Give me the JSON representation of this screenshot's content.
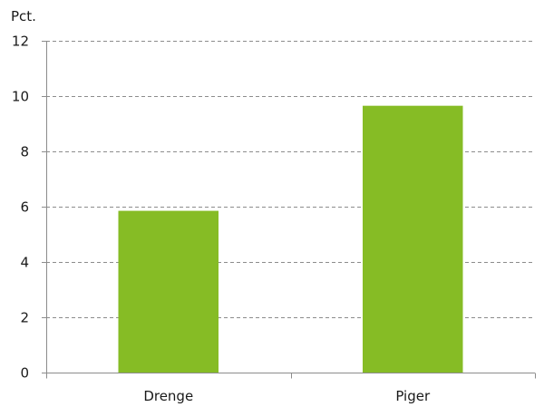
{
  "chart_data": {
    "type": "bar",
    "title": "",
    "xlabel": "",
    "ylabel": "Pct.",
    "categories": [
      "Drenge",
      "Piger"
    ],
    "values": [
      5.85,
      9.65
    ],
    "ylim": [
      0,
      12
    ],
    "yticks": [
      "0",
      "2",
      "4",
      "6",
      "8",
      "10",
      "12"
    ],
    "grid": true,
    "legend": "none",
    "bar_color": "#86bc25",
    "grid_color": "#8c8c8c"
  }
}
